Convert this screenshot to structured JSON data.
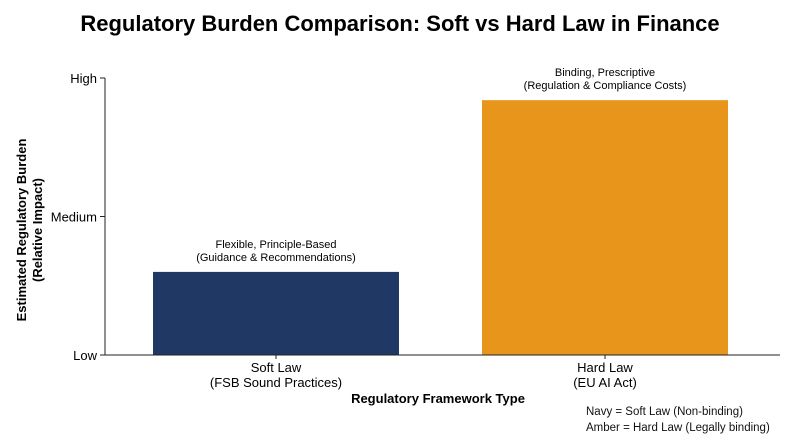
{
  "chart_data": {
    "type": "bar",
    "title": "Regulatory Burden Comparison: Soft vs Hard Law in Finance",
    "xlabel": "Regulatory Framework Type",
    "ylabel_lines": [
      "Estimated Regulatory Burden",
      "(Relative Impact)"
    ],
    "ylim": [
      0,
      10
    ],
    "yticks": [
      {
        "value": 0,
        "label": "Low"
      },
      {
        "value": 5,
        "label": "Medium"
      },
      {
        "value": 10,
        "label": "High"
      }
    ],
    "grid": false,
    "categories": [
      {
        "lines": [
          "Soft Law",
          "(FSB Sound Practices)"
        ]
      },
      {
        "lines": [
          "Hard Law",
          "(EU AI Act)"
        ]
      }
    ],
    "values": [
      3,
      9.2
    ],
    "colors": [
      "#1f3864",
      "#e8951c"
    ],
    "bar_annotations": [
      [
        "Flexible, Principle-Based",
        "(Guidance & Recommendations)"
      ],
      [
        "Binding, Prescriptive",
        "(Regulation & Compliance Costs)"
      ]
    ],
    "legend_note": [
      "Navy = Soft Law (Non-binding)",
      "Amber = Hard Law (Legally binding)"
    ]
  }
}
